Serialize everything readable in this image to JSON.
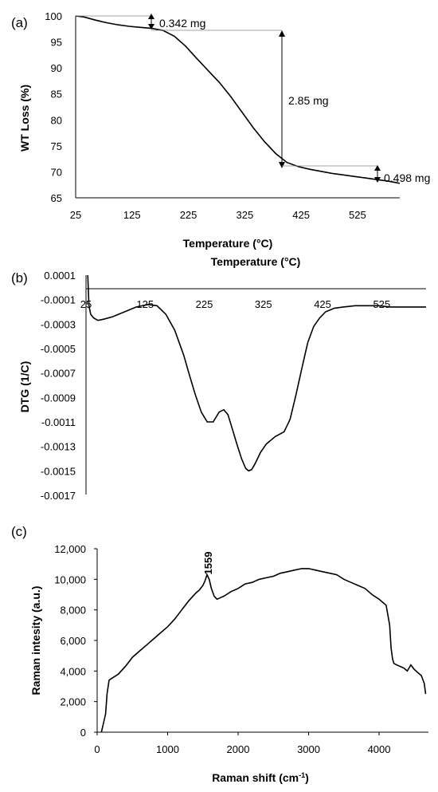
{
  "panels": [
    {
      "label": "(a)"
    },
    {
      "label": "(b)"
    },
    {
      "label": "(c)"
    }
  ],
  "chart_data": [
    {
      "panel": "(a)",
      "type": "line",
      "title": "",
      "xlabel": "Temperature (°C)",
      "ylabel": "WT Loss (%)",
      "xlim": [
        25,
        600
      ],
      "ylim": [
        65,
        100
      ],
      "xticks": [
        "25",
        "125",
        "225",
        "325",
        "425",
        "525"
      ],
      "yticks": [
        "65",
        "70",
        "75",
        "80",
        "85",
        "90",
        "95",
        "100"
      ],
      "grid": false,
      "x": [
        25,
        40,
        60,
        80,
        100,
        120,
        140,
        160,
        180,
        200,
        220,
        240,
        260,
        280,
        300,
        320,
        340,
        360,
        380,
        400,
        420,
        440,
        460,
        480,
        500,
        520,
        540,
        560,
        580,
        600
      ],
      "y": [
        100,
        99.8,
        99.2,
        98.7,
        98.3,
        98.0,
        97.8,
        97.6,
        97.2,
        96.1,
        94.2,
        91.8,
        89.5,
        87.2,
        84.5,
        81.5,
        78.5,
        75.8,
        73.5,
        71.8,
        71.0,
        70.5,
        70.1,
        69.7,
        69.4,
        69.1,
        68.8,
        68.5,
        68.2,
        67.8
      ],
      "annotations": [
        "0.342 mg",
        "2.85 mg",
        "0.498 mg"
      ]
    },
    {
      "panel": "(b)",
      "type": "line",
      "title": "Temperature (°C)",
      "xlabel": "",
      "ylabel": "DTG (1/C)",
      "xlim": [
        25,
        600
      ],
      "ylim": [
        -0.0017,
        0.0001
      ],
      "xticks": [
        "25",
        "125",
        "225",
        "325",
        "425",
        "525"
      ],
      "yticks": [
        "0.0001",
        "-0.0001",
        "-0.0003",
        "-0.0005",
        "-0.0007",
        "-0.0009",
        "-0.0011",
        "-0.0013",
        "-0.0015",
        "-0.0017"
      ],
      "grid": false,
      "x": [
        28,
        30,
        33,
        38,
        45,
        55,
        70,
        90,
        110,
        130,
        145,
        160,
        175,
        190,
        200,
        210,
        220,
        230,
        240,
        250,
        258,
        265,
        272,
        280,
        288,
        295,
        300,
        305,
        310,
        315,
        320,
        330,
        345,
        360,
        370,
        375,
        380,
        390,
        400,
        410,
        420,
        430,
        445,
        460,
        480,
        500,
        520,
        540,
        560,
        580,
        600
      ],
      "y": [
        0.0001,
        -0.00015,
        -0.00022,
        -0.00025,
        -0.00027,
        -0.00026,
        -0.00024,
        -0.0002,
        -0.00016,
        -0.00014,
        -0.00015,
        -0.00022,
        -0.00035,
        -0.00055,
        -0.00072,
        -0.00088,
        -0.00102,
        -0.0011,
        -0.0011,
        -0.00102,
        -0.001,
        -0.00104,
        -0.00115,
        -0.00128,
        -0.0014,
        -0.00148,
        -0.0015,
        -0.00149,
        -0.00145,
        -0.0014,
        -0.00135,
        -0.00128,
        -0.00122,
        -0.00118,
        -0.00108,
        -0.00098,
        -0.00088,
        -0.00066,
        -0.00045,
        -0.00032,
        -0.00025,
        -0.0002,
        -0.00017,
        -0.00016,
        -0.00015,
        -0.00015,
        -0.00015,
        -0.00016,
        -0.00016,
        -0.00016,
        -0.00016
      ]
    },
    {
      "panel": "(c)",
      "type": "line",
      "title": "",
      "xlabel": "Raman shift (cm-1)",
      "ylabel": "Raman intesity (a.u.)",
      "xlim": [
        0,
        4700
      ],
      "ylim": [
        0,
        12000
      ],
      "xticks": [
        "0",
        "1000",
        "2000",
        "3000",
        "4000"
      ],
      "yticks": [
        "0",
        "2,000",
        "4,000",
        "6,000",
        "8,000",
        "10,000",
        "12,000"
      ],
      "grid": false,
      "x": [
        60,
        90,
        120,
        140,
        170,
        200,
        300,
        400,
        500,
        600,
        700,
        800,
        900,
        1000,
        1100,
        1200,
        1300,
        1400,
        1450,
        1500,
        1530,
        1559,
        1590,
        1620,
        1660,
        1700,
        1750,
        1800,
        1900,
        2000,
        2100,
        2200,
        2300,
        2400,
        2500,
        2600,
        2700,
        2800,
        2900,
        3000,
        3100,
        3200,
        3300,
        3400,
        3500,
        3600,
        3700,
        3800,
        3900,
        4000,
        4050,
        4100,
        4150,
        4170,
        4190,
        4210,
        4250,
        4300,
        4350,
        4400,
        4450,
        4500,
        4550,
        4600,
        4640,
        4660
      ],
      "y": [
        0,
        600,
        1200,
        2500,
        3400,
        3500,
        3800,
        4300,
        4900,
        5300,
        5700,
        6100,
        6500,
        6900,
        7400,
        8000,
        8600,
        9100,
        9300,
        9600,
        9900,
        10300,
        10000,
        9400,
        8900,
        8700,
        8800,
        8900,
        9200,
        9400,
        9700,
        9800,
        10000,
        10100,
        10200,
        10400,
        10500,
        10600,
        10700,
        10700,
        10600,
        10500,
        10400,
        10300,
        10000,
        9800,
        9600,
        9400,
        9000,
        8700,
        8500,
        8300,
        7000,
        5500,
        4800,
        4500,
        4400,
        4300,
        4200,
        4000,
        4400,
        4100,
        3900,
        3700,
        3200,
        2500
      ],
      "annotations": [
        "1559"
      ]
    }
  ]
}
